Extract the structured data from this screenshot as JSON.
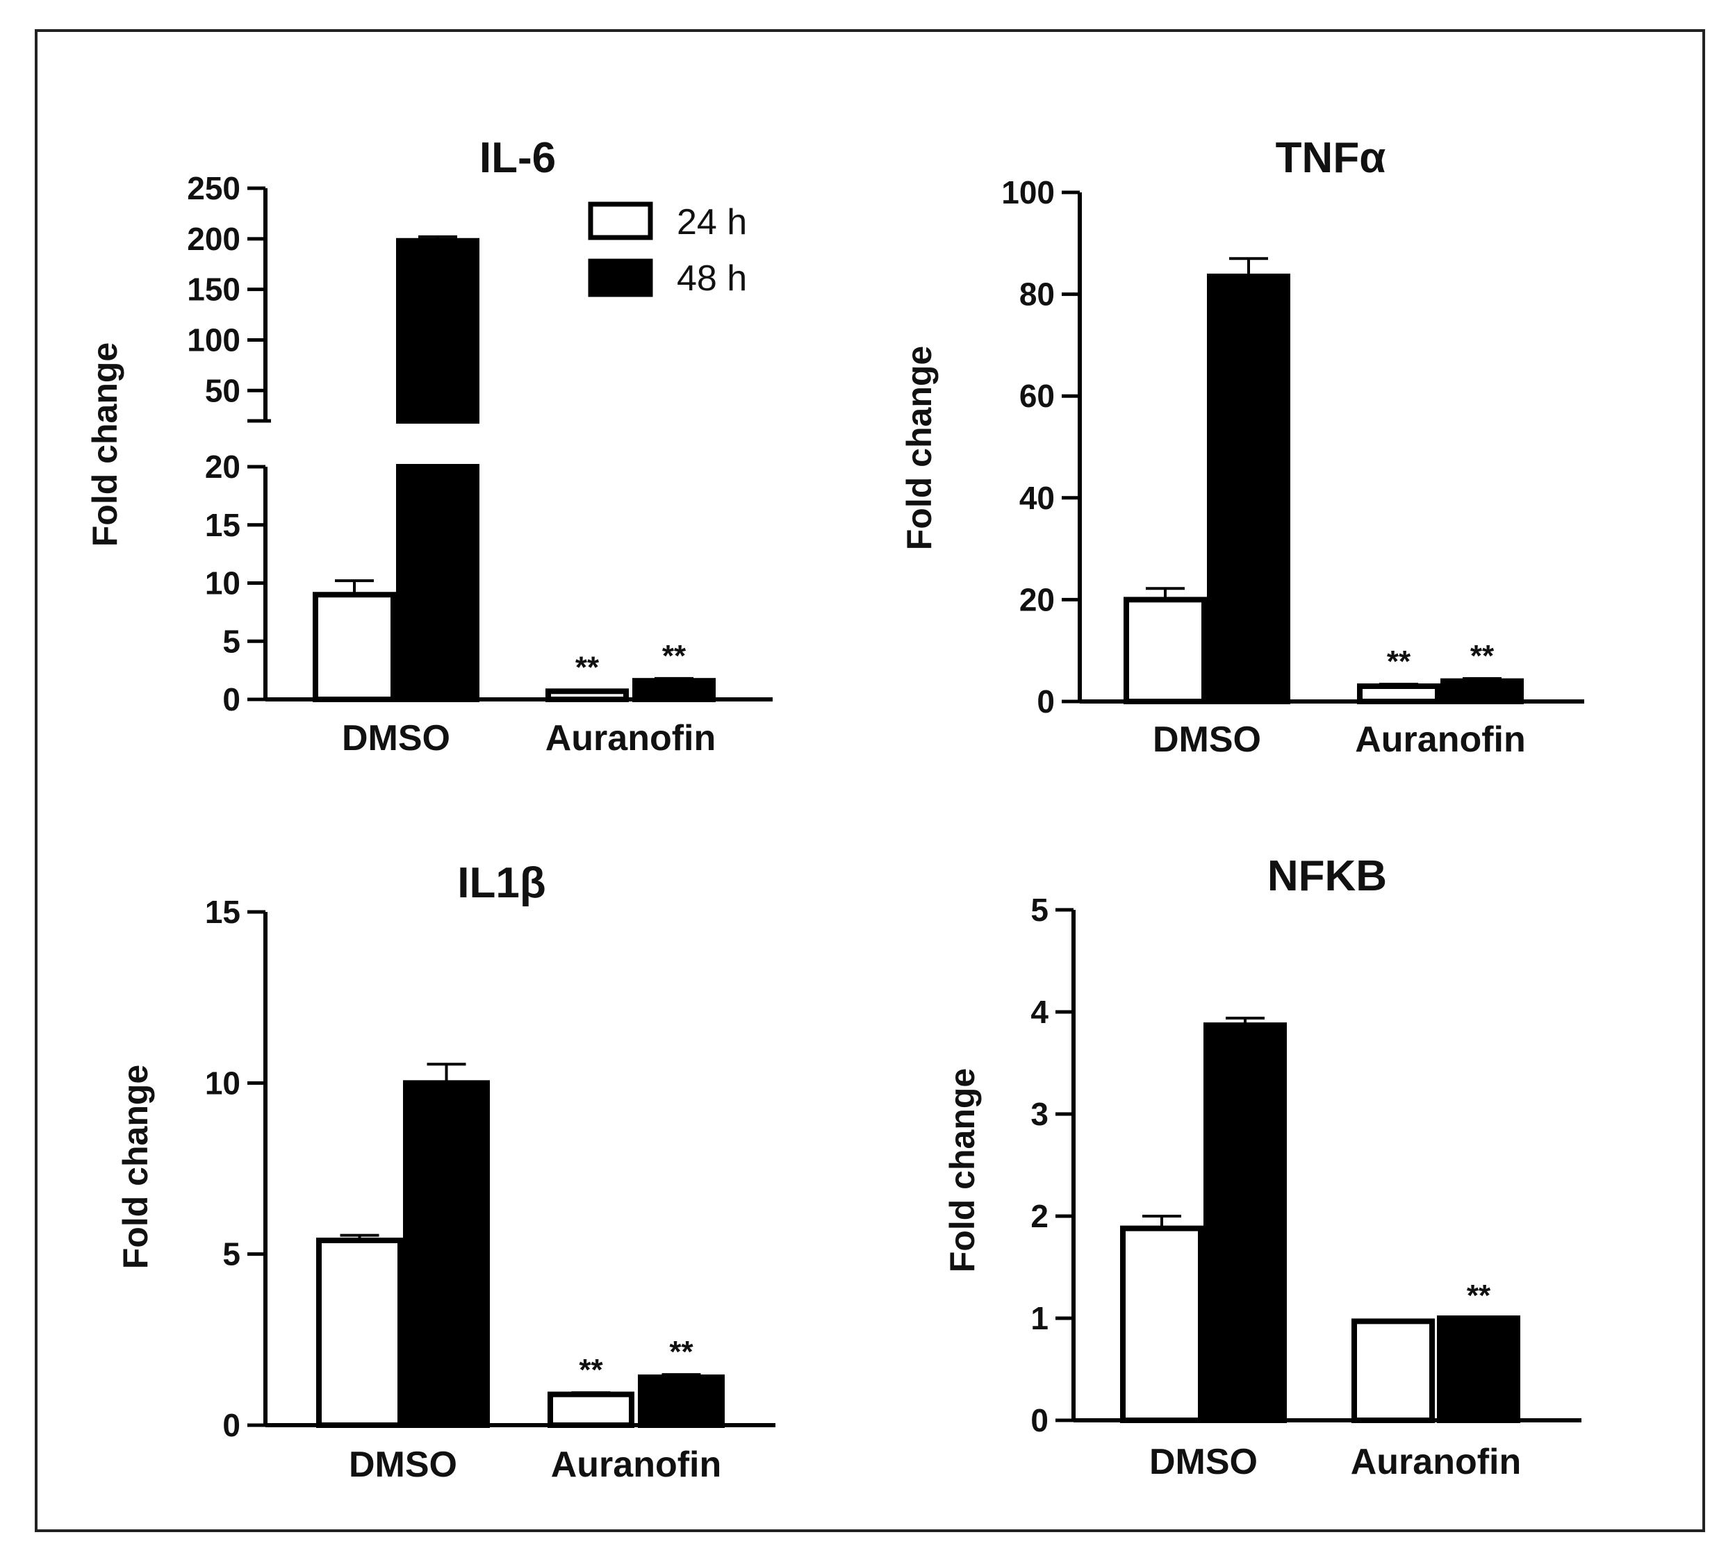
{
  "colors": {
    "frame": "#222222",
    "ink": "#000000",
    "bar_24h": "#ffffff",
    "bar_48h": "#000000"
  },
  "legend": {
    "items": [
      {
        "label": "24 h",
        "icon": "hollow-square"
      },
      {
        "label": "48 h",
        "icon": "filled-square"
      }
    ]
  },
  "chart_data": [
    {
      "id": "il6",
      "type": "bar",
      "title": "IL-6",
      "ylabel": "Fold change",
      "categories": [
        "DMSO",
        "Auranofin"
      ],
      "series": [
        {
          "name": "24 h",
          "values": [
            9,
            0.7
          ],
          "errors": [
            1.2,
            0.1
          ],
          "significance": [
            "",
            "**"
          ]
        },
        {
          "name": "48 h",
          "values": [
            198,
            1.6
          ],
          "errors": [
            4,
            0.2
          ],
          "significance": [
            "",
            "**"
          ]
        }
      ],
      "y_axis_broken": true,
      "lower_segment": {
        "ylim": [
          0,
          20
        ],
        "ticks": [
          0,
          5,
          10,
          15,
          20
        ]
      },
      "upper_segment": {
        "ylim": [
          20,
          250
        ],
        "ticks": [
          50,
          100,
          150,
          200,
          250
        ]
      }
    },
    {
      "id": "tnfa",
      "type": "bar",
      "title": "TNFα",
      "ylabel": "Fold change",
      "categories": [
        "DMSO",
        "Auranofin"
      ],
      "series": [
        {
          "name": "24 h",
          "values": [
            20,
            3
          ],
          "errors": [
            2.2,
            0.4
          ],
          "significance": [
            "",
            "**"
          ]
        },
        {
          "name": "48 h",
          "values": [
            83.5,
            4
          ],
          "errors": [
            3.5,
            0.5
          ],
          "significance": [
            "",
            "**"
          ]
        }
      ],
      "ylim": [
        0,
        100
      ],
      "ticks": [
        0,
        20,
        40,
        60,
        80,
        100
      ]
    },
    {
      "id": "il1b",
      "type": "bar",
      "title": "IL1β",
      "ylabel": "Fold change",
      "categories": [
        "DMSO",
        "Auranofin"
      ],
      "series": [
        {
          "name": "24 h",
          "values": [
            5.4,
            0.9
          ],
          "errors": [
            0.15,
            0.05
          ],
          "significance": [
            "",
            "**"
          ]
        },
        {
          "name": "48 h",
          "values": [
            10,
            1.4
          ],
          "errors": [
            0.55,
            0.08
          ],
          "significance": [
            "",
            "**"
          ]
        }
      ],
      "ylim": [
        0,
        15
      ],
      "ticks": [
        0,
        5,
        10,
        15
      ]
    },
    {
      "id": "nfkb",
      "type": "bar",
      "title": "NFKB",
      "ylabel": "Fold change",
      "categories": [
        "DMSO",
        "Auranofin"
      ],
      "series": [
        {
          "name": "24 h",
          "values": [
            1.88,
            0.97
          ],
          "errors": [
            0.12,
            0
          ],
          "significance": [
            "",
            ""
          ]
        },
        {
          "name": "48 h",
          "values": [
            3.87,
            1
          ],
          "errors": [
            0.07,
            0
          ],
          "significance": [
            "",
            "**"
          ]
        }
      ],
      "ylim": [
        0,
        5
      ],
      "ticks": [
        0,
        1,
        2,
        3,
        4,
        5
      ]
    }
  ]
}
